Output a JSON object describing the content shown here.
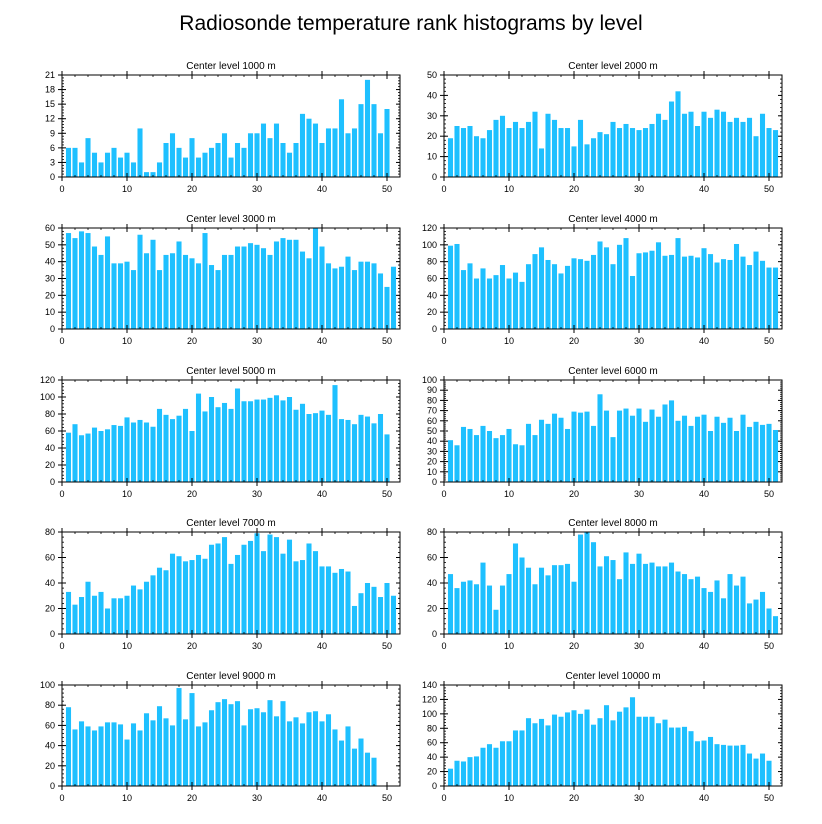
{
  "title": "Radiosonde temperature rank histograms by level",
  "colors": {
    "bar": "#1ec0ff",
    "axis": "#000000"
  },
  "chart_data": [
    {
      "type": "bar",
      "title": "Center level 1000 m",
      "xlim": [
        0,
        52
      ],
      "ylim": [
        0,
        21
      ],
      "yticks": [
        0,
        3,
        6,
        9,
        12,
        15,
        18,
        21
      ],
      "xticks": [
        0,
        10,
        20,
        30,
        40,
        50
      ],
      "values": [
        6,
        6,
        3,
        8,
        5,
        3,
        5,
        6,
        4,
        5,
        3,
        10,
        1,
        1,
        3,
        7,
        9,
        6,
        4,
        8,
        4,
        5,
        6,
        7,
        9,
        4,
        7,
        6,
        9,
        9,
        11,
        8,
        11,
        7,
        5,
        7,
        13,
        12,
        11,
        7,
        10,
        10,
        16,
        9,
        10,
        15,
        20,
        15,
        9,
        14
      ]
    },
    {
      "type": "bar",
      "title": "Center level 2000 m",
      "xlim": [
        0,
        52
      ],
      "ylim": [
        0,
        50
      ],
      "yticks": [
        0,
        10,
        20,
        30,
        40,
        50
      ],
      "xticks": [
        0,
        10,
        20,
        30,
        40,
        50
      ],
      "values": [
        19,
        25,
        24,
        25,
        20,
        19,
        23,
        28,
        30,
        24,
        27,
        24,
        27,
        32,
        14,
        31,
        28,
        24,
        24,
        15,
        28,
        16,
        19,
        22,
        21,
        27,
        24,
        26,
        24,
        23,
        24,
        26,
        31,
        28,
        37,
        42,
        31,
        32,
        25,
        32,
        29,
        33,
        32,
        27,
        29,
        27,
        29,
        20,
        31,
        24,
        23
      ]
    },
    {
      "type": "bar",
      "title": "Center level 3000 m",
      "xlim": [
        0,
        52
      ],
      "ylim": [
        0,
        60
      ],
      "yticks": [
        0,
        10,
        20,
        30,
        40,
        50,
        60
      ],
      "xticks": [
        0,
        10,
        20,
        30,
        40,
        50
      ],
      "values": [
        57,
        54,
        58,
        57,
        49,
        44,
        55,
        39,
        39,
        40,
        35,
        56,
        45,
        53,
        35,
        44,
        45,
        52,
        44,
        42,
        39,
        57,
        38,
        35,
        44,
        44,
        49,
        49,
        51,
        50,
        48,
        44,
        52,
        54,
        53,
        53,
        46,
        42,
        60,
        49,
        39,
        36,
        37,
        43,
        35,
        40,
        40,
        39,
        33,
        25,
        37
      ]
    },
    {
      "type": "bar",
      "title": "Center level 4000 m",
      "xlim": [
        0,
        52
      ],
      "ylim": [
        0,
        120
      ],
      "yticks": [
        0,
        20,
        40,
        60,
        80,
        100,
        120
      ],
      "xticks": [
        0,
        10,
        20,
        30,
        40,
        50
      ],
      "values": [
        99,
        101,
        70,
        78,
        60,
        72,
        60,
        64,
        76,
        60,
        67,
        56,
        77,
        89,
        97,
        82,
        77,
        66,
        75,
        84,
        83,
        81,
        88,
        104,
        97,
        77,
        100,
        108,
        63,
        90,
        91,
        93,
        103,
        87,
        88,
        108,
        86,
        87,
        85,
        96,
        89,
        79,
        83,
        82,
        101,
        86,
        76,
        92,
        81,
        73,
        73
      ]
    },
    {
      "type": "bar",
      "title": "Center level 5000 m",
      "xlim": [
        0,
        52
      ],
      "ylim": [
        0,
        120
      ],
      "yticks": [
        0,
        20,
        40,
        60,
        80,
        100,
        120
      ],
      "xticks": [
        0,
        10,
        20,
        30,
        40,
        50
      ],
      "values": [
        58,
        68,
        55,
        57,
        64,
        60,
        62,
        67,
        66,
        76,
        70,
        73,
        70,
        65,
        86,
        79,
        74,
        78,
        86,
        60,
        104,
        83,
        100,
        88,
        93,
        86,
        110,
        95,
        95,
        97,
        97,
        99,
        102,
        96,
        100,
        85,
        92,
        80,
        81,
        84,
        79,
        114,
        74,
        73,
        68,
        79,
        77,
        69,
        80,
        56
      ]
    },
    {
      "type": "bar",
      "title": "Center level 6000 m",
      "xlim": [
        0,
        52
      ],
      "ylim": [
        0,
        100
      ],
      "yticks": [
        0,
        10,
        20,
        30,
        40,
        50,
        60,
        70,
        80,
        90,
        100
      ],
      "xticks": [
        0,
        10,
        20,
        30,
        40,
        50
      ],
      "values": [
        41,
        36,
        54,
        52,
        46,
        55,
        50,
        43,
        46,
        52,
        37,
        36,
        57,
        46,
        61,
        57,
        67,
        63,
        52,
        69,
        68,
        69,
        55,
        86,
        70,
        44,
        70,
        72,
        65,
        72,
        59,
        71,
        64,
        76,
        80,
        60,
        65,
        55,
        64,
        66,
        50,
        64,
        58,
        63,
        50,
        66,
        54,
        59,
        56,
        57,
        51
      ]
    },
    {
      "type": "bar",
      "title": "Center level 7000 m",
      "xlim": [
        0,
        52
      ],
      "ylim": [
        0,
        80
      ],
      "yticks": [
        0,
        20,
        40,
        60,
        80
      ],
      "xticks": [
        0,
        10,
        20,
        30,
        40,
        50
      ],
      "values": [
        33,
        23,
        29,
        41,
        30,
        33,
        20,
        28,
        28,
        30,
        38,
        35,
        41,
        46,
        52,
        50,
        63,
        61,
        57,
        58,
        62,
        59,
        70,
        71,
        76,
        55,
        62,
        70,
        73,
        79,
        65,
        78,
        76,
        63,
        74,
        57,
        58,
        71,
        65,
        53,
        53,
        48,
        51,
        49,
        22,
        32,
        40,
        37,
        29,
        40,
        30
      ]
    },
    {
      "type": "bar",
      "title": "Center level 8000 m",
      "xlim": [
        0,
        52
      ],
      "ylim": [
        0,
        80
      ],
      "yticks": [
        0,
        20,
        40,
        60,
        80
      ],
      "xticks": [
        0,
        10,
        20,
        30,
        40,
        50
      ],
      "values": [
        47,
        36,
        41,
        42,
        39,
        56,
        38,
        19,
        38,
        47,
        71,
        60,
        52,
        39,
        52,
        46,
        54,
        54,
        55,
        41,
        78,
        80,
        72,
        53,
        61,
        58,
        43,
        64,
        55,
        63,
        55,
        56,
        53,
        53,
        56,
        49,
        47,
        43,
        45,
        36,
        33,
        42,
        28,
        47,
        38,
        45,
        24,
        27,
        33,
        20,
        14
      ]
    },
    {
      "type": "bar",
      "title": "Center level 9000 m",
      "xlim": [
        0,
        52
      ],
      "ylim": [
        0,
        100
      ],
      "yticks": [
        0,
        20,
        40,
        60,
        80,
        100
      ],
      "xticks": [
        0,
        10,
        20,
        30,
        40,
        50
      ],
      "values": [
        78,
        56,
        64,
        59,
        55,
        59,
        63,
        63,
        61,
        46,
        62,
        55,
        72,
        65,
        79,
        67,
        60,
        97,
        66,
        92,
        59,
        63,
        75,
        83,
        86,
        81,
        84,
        60,
        76,
        77,
        73,
        85,
        69,
        84,
        64,
        68,
        62,
        73,
        74,
        64,
        71,
        56,
        45,
        59,
        37,
        47,
        33,
        28
      ]
    },
    {
      "type": "bar",
      "title": "Center level 10000 m",
      "xlim": [
        0,
        52
      ],
      "ylim": [
        0,
        140
      ],
      "yticks": [
        0,
        20,
        40,
        60,
        80,
        100,
        120,
        140
      ],
      "xticks": [
        0,
        10,
        20,
        30,
        40,
        50
      ],
      "values": [
        24,
        35,
        34,
        40,
        41,
        53,
        58,
        53,
        62,
        62,
        77,
        77,
        94,
        87,
        93,
        84,
        99,
        96,
        102,
        105,
        100,
        106,
        85,
        94,
        112,
        91,
        103,
        109,
        123,
        96,
        96,
        96,
        87,
        92,
        81,
        81,
        82,
        76,
        62,
        63,
        68,
        58,
        57,
        56,
        56,
        57,
        45,
        38,
        45,
        35
      ]
    }
  ]
}
